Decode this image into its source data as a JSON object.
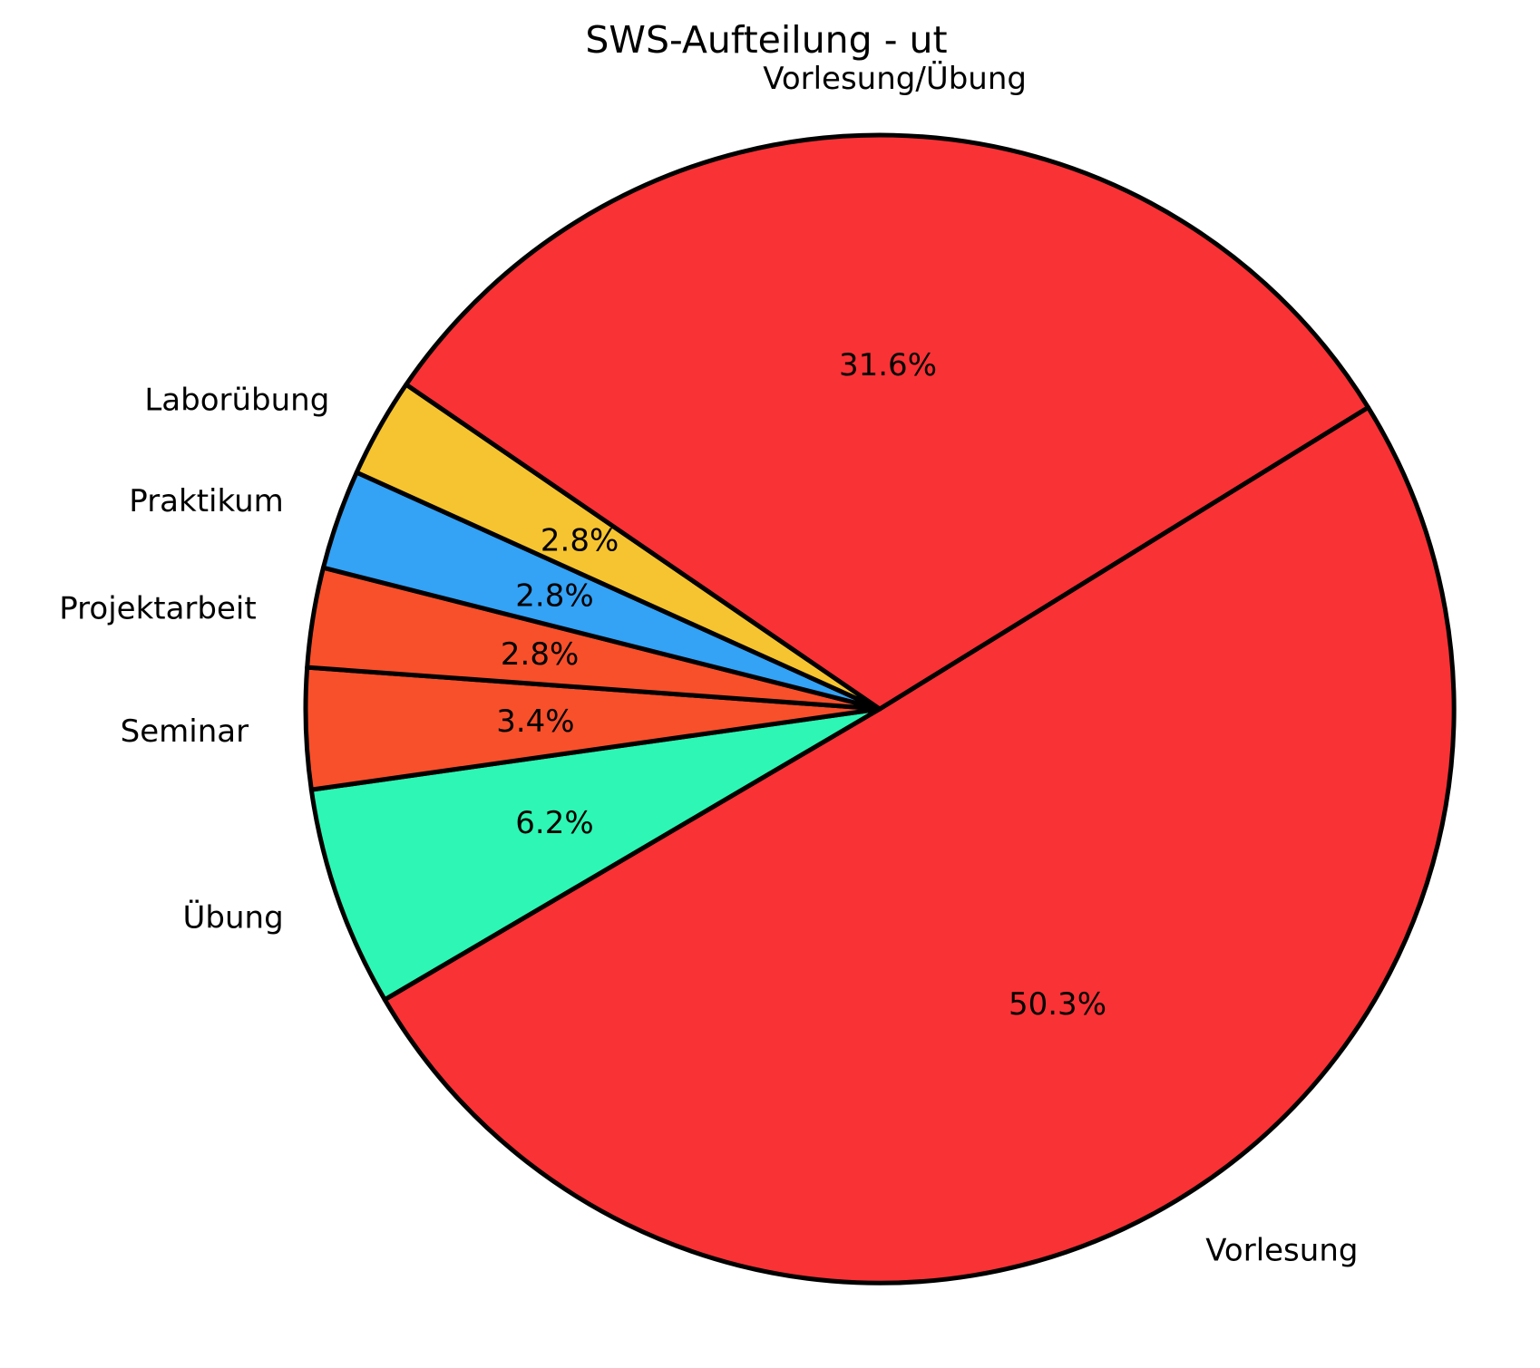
{
  "chart_data": {
    "type": "pie",
    "title": "SWS-Aufteilung - ut",
    "slices": [
      {
        "label": "Vorlesung",
        "pct": 50.3,
        "pct_label": "50.3%",
        "color": "#f93235"
      },
      {
        "label": "Übung",
        "pct": 6.2,
        "pct_label": "6.2%",
        "color": "#2ef6b4"
      },
      {
        "label": "Seminar",
        "pct": 3.4,
        "pct_label": "3.4%",
        "color": "#f7502b"
      },
      {
        "label": "Projektarbeit",
        "pct": 2.8,
        "pct_label": "2.8%",
        "color": "#f7502b"
      },
      {
        "label": "Praktikum",
        "pct": 2.8,
        "pct_label": "2.8%",
        "color": "#34a2f5"
      },
      {
        "label": "Laborübung",
        "pct": 2.8,
        "pct_label": "2.8%",
        "color": "#f6c430"
      },
      {
        "label": "Vorlesung/Übung",
        "pct": 31.6,
        "pct_label": "31.6%",
        "color": "#f93235"
      }
    ],
    "start_angle_deg": 31.7,
    "direction": "clockwise",
    "label_distance": 1.1,
    "pct_distance": 0.6,
    "legend": "none",
    "edge_color": "#000000",
    "text_color": "#000000",
    "background": "#ffffff"
  }
}
